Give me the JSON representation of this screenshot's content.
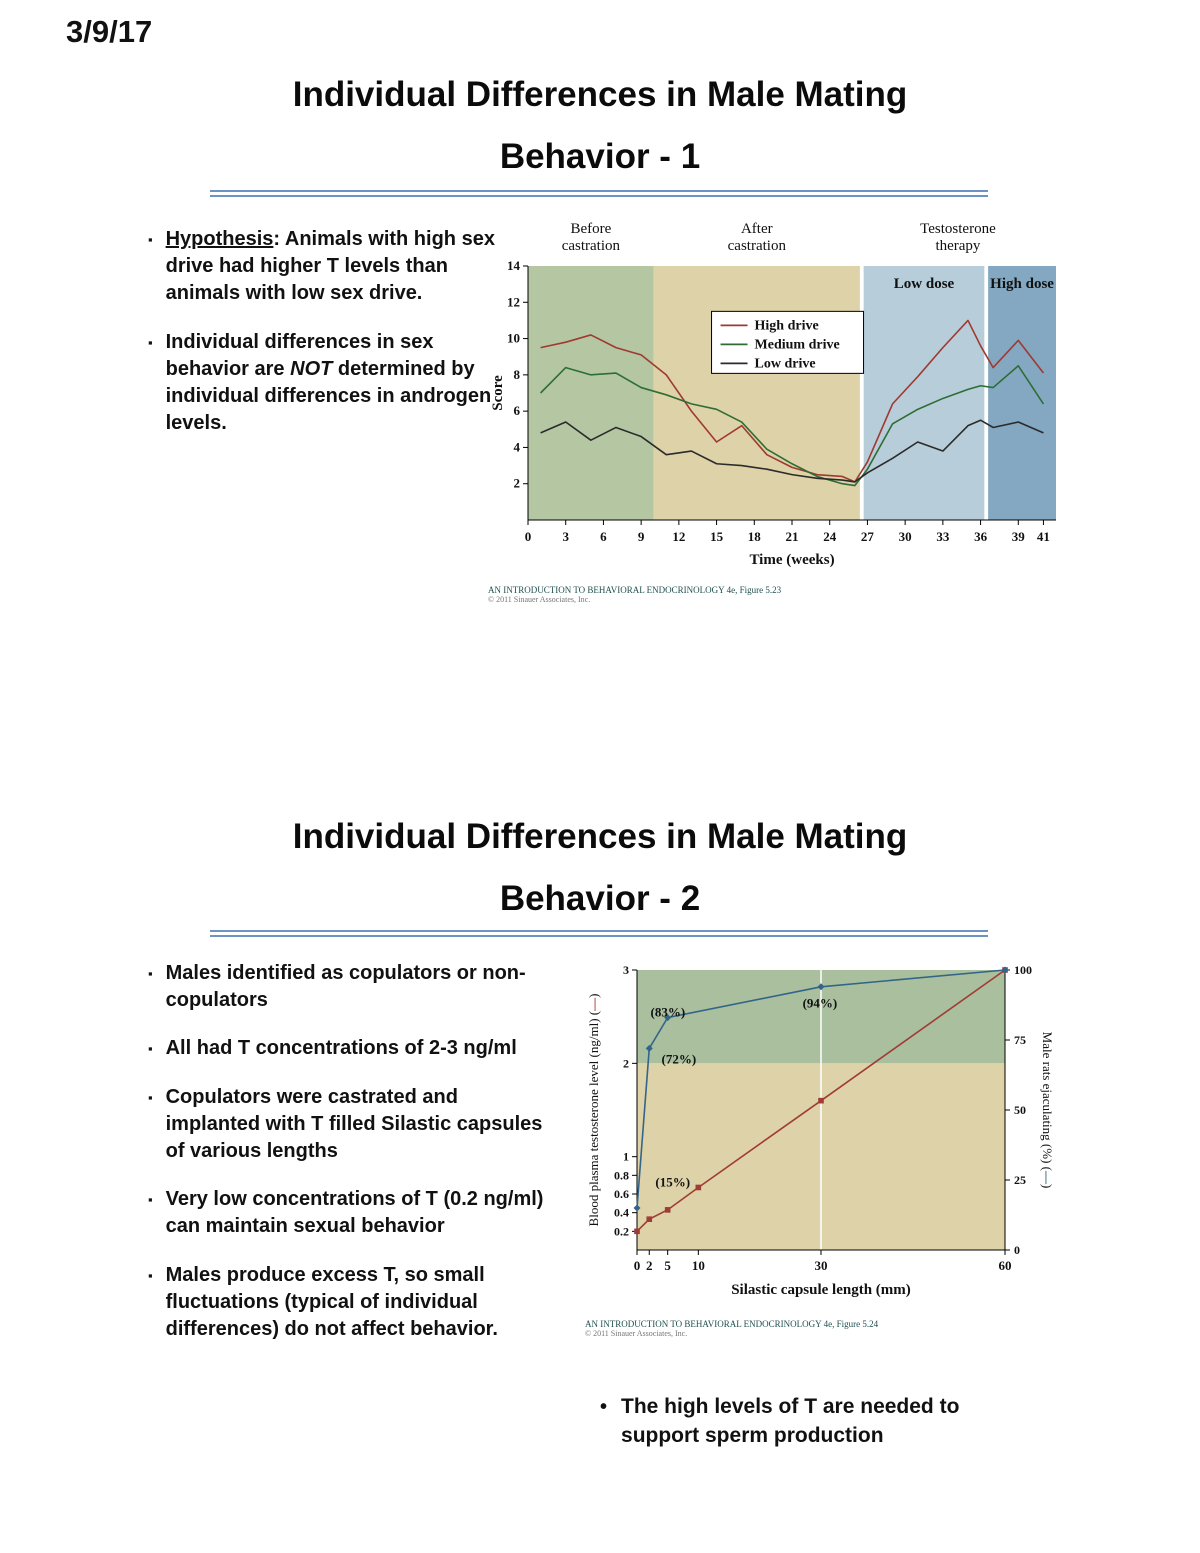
{
  "page": {
    "date": "3/9/17"
  },
  "slide1": {
    "title": [
      "Individual Differences in Male Mating",
      "Behavior - 1"
    ],
    "bullets": {
      "b1_lead": "Hypothesis",
      "b1_rest": ": Animals with high sex drive had higher T levels than animals with low sex drive.",
      "b2_pre": "Individual differences in sex behavior are ",
      "b2_em": "NOT",
      "b2_post": " determined by individual differences in androgen levels."
    },
    "figure": {
      "caption": "AN INTRODUCTION TO BEHAVIORAL ENDOCRINOLOGY 4e, Figure 5.23",
      "copyright": "© 2011 Sinauer Associates, Inc."
    }
  },
  "slide2": {
    "title": [
      "Individual Differences in Male Mating",
      "Behavior - 2"
    ],
    "bullets": [
      "Males identified as copulators or non-copulators",
      "All had T concentrations of 2-3 ng/ml",
      "Copulators were castrated and implanted with T filled Silastic capsules of various lengths",
      "Very low concentrations of T (0.2 ng/ml) can maintain sexual behavior",
      "Males produce excess T, so small fluctuations (typical of individual differences) do not affect behavior."
    ],
    "conclusion": "The high levels of T are needed to support sperm production",
    "figure": {
      "caption": "AN INTRODUCTION TO BEHAVIORAL ENDOCRINOLOGY 4e, Figure 5.24",
      "copyright": "© 2011 Sinauer Associates, Inc."
    }
  },
  "chart_data": [
    {
      "type": "line",
      "xlabel": "Time (weeks)",
      "ylabel": "Score",
      "xlim": [
        0,
        42
      ],
      "ylim": [
        0,
        14
      ],
      "xticks": [
        0,
        3,
        6,
        9,
        12,
        15,
        18,
        21,
        24,
        27,
        30,
        33,
        36,
        39,
        41
      ],
      "yticks": [
        2,
        4,
        6,
        8,
        10,
        12,
        14
      ],
      "phases": [
        {
          "x": 5,
          "lines": [
            "Before",
            "castration"
          ]
        },
        {
          "x": 18.2,
          "lines": [
            "After",
            "castration"
          ]
        },
        {
          "x": 34.2,
          "lines": [
            "Testosterone",
            "therapy"
          ]
        }
      ],
      "regions": [
        {
          "label": "",
          "x0": 0,
          "x1": 10,
          "color": "#b5c6a2"
        },
        {
          "label": "",
          "x0": 10,
          "x1": 26.4,
          "color": "#ded2a8"
        },
        {
          "label": "Low dose",
          "x0": 26.7,
          "x1": 36.3,
          "color": "#b7cdd9"
        },
        {
          "label": "High dose",
          "x0": 36.6,
          "x1": 42,
          "color": "#84a8c2"
        }
      ],
      "legend": {
        "x": 14.6,
        "y": 11.5
      },
      "series": [
        {
          "name": "High drive",
          "color": "#9e3a32",
          "x": [
            1,
            3,
            5,
            7,
            9,
            11,
            13,
            15,
            17,
            19,
            21,
            23,
            25,
            26,
            27,
            29,
            31,
            33,
            35,
            36,
            37,
            39,
            41
          ],
          "y": [
            9.5,
            9.8,
            10.2,
            9.5,
            9.1,
            8.0,
            6.0,
            4.3,
            5.2,
            3.6,
            2.9,
            2.5,
            2.4,
            2.1,
            3.2,
            6.4,
            7.9,
            9.5,
            11.0,
            9.6,
            8.4,
            9.9,
            8.1
          ]
        },
        {
          "name": "Medium drive",
          "color": "#2d6e35",
          "x": [
            1,
            3,
            5,
            7,
            9,
            11,
            13,
            15,
            17,
            19,
            21,
            23,
            25,
            26,
            27,
            29,
            31,
            33,
            35,
            36,
            37,
            39,
            41
          ],
          "y": [
            7.0,
            8.4,
            8.0,
            8.1,
            7.3,
            6.9,
            6.4,
            6.1,
            5.4,
            3.9,
            3.1,
            2.4,
            2.0,
            1.9,
            2.8,
            5.3,
            6.1,
            6.7,
            7.2,
            7.4,
            7.3,
            8.5,
            6.4
          ]
        },
        {
          "name": "Low drive",
          "color": "#2b2b2b",
          "x": [
            1,
            3,
            5,
            7,
            9,
            11,
            13,
            15,
            17,
            19,
            21,
            23,
            25,
            26,
            27,
            29,
            31,
            33,
            35,
            36,
            37,
            39,
            41
          ],
          "y": [
            4.8,
            5.4,
            4.4,
            5.1,
            4.6,
            3.6,
            3.8,
            3.1,
            3.0,
            2.8,
            2.5,
            2.3,
            2.2,
            2.1,
            2.6,
            3.4,
            4.3,
            3.8,
            5.2,
            5.5,
            5.1,
            5.4,
            4.8
          ]
        }
      ]
    },
    {
      "type": "line",
      "xlabel": "Silastic capsule length (mm)",
      "ylabel_left": {
        "text": "Blood plasma testosterone level (ng/ml)",
        "symbol_color": "#a03b36"
      },
      "ylabel_right": {
        "text": "Male rats ejaculating (%)",
        "symbol_color": "#33658a"
      },
      "xlim": [
        0,
        60
      ],
      "ylim_left": [
        0,
        3
      ],
      "ylim_right": [
        0,
        100
      ],
      "xticks": [
        0,
        2,
        5,
        10,
        30,
        60
      ],
      "yticks_left": [
        0.2,
        0.4,
        0.6,
        0.8,
        1,
        2,
        3
      ],
      "yticks_right": [
        0,
        25,
        50,
        75,
        100
      ],
      "gridlines_x": [
        30
      ],
      "regions": [
        {
          "y0": 2,
          "y1": 3,
          "color": "#a9bf9d"
        },
        {
          "y0": 0,
          "y1": 2,
          "color": "#ded2a8"
        }
      ],
      "series": [
        {
          "name": "Blood plasma testosterone level (ng/ml)",
          "axis": "left",
          "color": "#a03b36",
          "marker": "square",
          "x": [
            0,
            2,
            5,
            10,
            30,
            60
          ],
          "y": [
            0.2,
            0.33,
            0.43,
            0.67,
            1.6,
            3.0
          ]
        },
        {
          "name": "Male rats ejaculating (%)",
          "axis": "right",
          "color": "#33658a",
          "marker": "diamond",
          "x": [
            0,
            2,
            5,
            30,
            60
          ],
          "y": [
            15,
            72,
            83,
            94,
            100
          ]
        }
      ],
      "annotations": [
        {
          "text": "(15%)",
          "x": 3,
          "y": 0.68
        },
        {
          "text": "(72%)",
          "x": 4,
          "y": 2.0
        },
        {
          "text": "(83%)",
          "x": 2.2,
          "y": 2.5
        },
        {
          "text": "(94%)",
          "x": 27,
          "y": 2.6
        }
      ]
    }
  ]
}
